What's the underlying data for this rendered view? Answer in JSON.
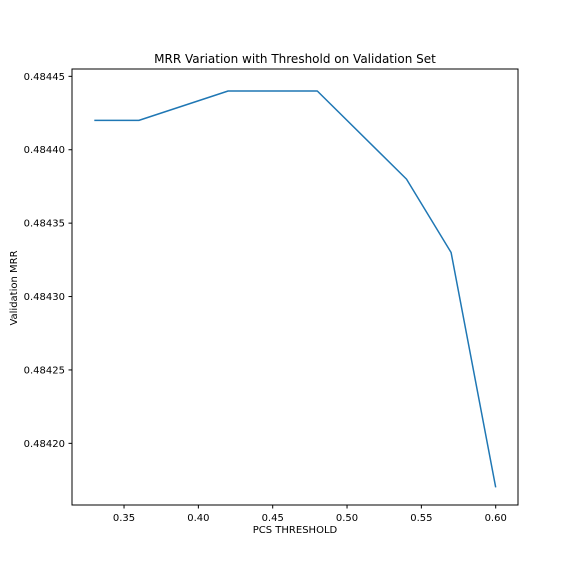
{
  "chart_data": {
    "type": "line",
    "title": "MRR Variation with Threshold on Validation Set",
    "xlabel": "PCS THRESHOLD",
    "ylabel": "Validation MRR",
    "xlim": [
      0.315,
      0.615
    ],
    "ylim": [
      0.484158,
      0.484455
    ],
    "xticks": [
      0.35,
      0.4,
      0.45,
      0.5,
      0.55,
      0.6
    ],
    "xtick_labels": [
      "0.35",
      "0.40",
      "0.45",
      "0.50",
      "0.55",
      "0.60"
    ],
    "yticks": [
      0.4842,
      0.48425,
      0.4843,
      0.48435,
      0.4844,
      0.48445
    ],
    "ytick_labels": [
      "0.48420",
      "0.48425",
      "0.48430",
      "0.48435",
      "0.48440",
      "0.48445"
    ],
    "grid": false,
    "legend": "none",
    "series": [
      {
        "color": "#1f77b4",
        "x": [
          0.33,
          0.36,
          0.42,
          0.48,
          0.54,
          0.57,
          0.6
        ],
        "y": [
          0.48442,
          0.48442,
          0.48444,
          0.48444,
          0.48438,
          0.48433,
          0.48417
        ]
      }
    ]
  }
}
